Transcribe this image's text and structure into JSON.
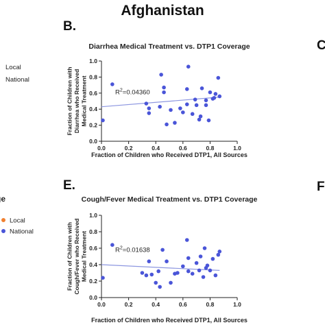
{
  "page": {
    "title": "Afghanistan",
    "left_cut_text": "ge",
    "colors": {
      "local": "#f08030",
      "national": "#4a55d8",
      "trend": "#8c96e0"
    }
  },
  "legends": [
    {
      "items": [
        "Local",
        "National"
      ],
      "show_markers": false
    },
    {
      "items": [
        "Local",
        "National"
      ],
      "show_markers": true
    }
  ],
  "right_letters": [
    "C",
    "F"
  ],
  "chart_data": [
    {
      "type": "scatter",
      "panel": "B.",
      "title": "Diarrhea Medical Treatment vs. DTP1 Coverage",
      "xlabel": "Fraction of Children who Received DTP1, All Sources",
      "ylabel_lines": [
        "Fraction of Children with",
        "Diarrhea who Received",
        "Medical Treatment"
      ],
      "xlim": [
        0,
        1
      ],
      "ylim": [
        0,
        1
      ],
      "xticks": [
        "0.0",
        "0.2",
        "0.4",
        "0.6",
        "0.8",
        "1.0"
      ],
      "yticks": [
        "0.0",
        "0.2",
        "0.4",
        "0.6",
        "0.8",
        "1.0"
      ],
      "annotation": {
        "prefix": "R",
        "sup": "2",
        "value": "=0.04360"
      },
      "trend": {
        "x": [
          0,
          0.87
        ],
        "y": [
          0.43,
          0.55
        ]
      },
      "x": [
        0.01,
        0.08,
        0.33,
        0.35,
        0.35,
        0.43,
        0.44,
        0.46,
        0.46,
        0.48,
        0.51,
        0.54,
        0.58,
        0.6,
        0.63,
        0.63,
        0.64,
        0.67,
        0.69,
        0.7,
        0.72,
        0.73,
        0.74,
        0.77,
        0.77,
        0.79,
        0.8,
        0.82,
        0.83,
        0.84,
        0.86,
        0.87
      ],
      "y": [
        0.26,
        0.71,
        0.47,
        0.41,
        0.35,
        0.43,
        0.83,
        0.67,
        0.61,
        0.21,
        0.39,
        0.23,
        0.41,
        0.36,
        0.65,
        0.46,
        0.93,
        0.34,
        0.52,
        0.45,
        0.27,
        0.31,
        0.66,
        0.51,
        0.45,
        0.26,
        0.61,
        0.53,
        0.54,
        0.59,
        0.79,
        0.56
      ]
    },
    {
      "type": "scatter",
      "panel": "E.",
      "title": "Cough/Fever Medical Treatment vs. DTP1 Coverage",
      "xlabel": "Fraction of Children who Received DTP1, All Sources",
      "ylabel_lines": [
        "Fraction of Children with",
        "Cough/Fever who Received",
        "Medical Treatment"
      ],
      "xlim": [
        0,
        1
      ],
      "ylim": [
        0,
        1
      ],
      "xticks": [
        "0.0",
        "0.2",
        "0.4",
        "0.6",
        "0.8",
        "1.0"
      ],
      "yticks": [
        "0.0",
        "0.2",
        "0.4",
        "0.6",
        "0.8",
        "1.0"
      ],
      "annotation": {
        "prefix": "R",
        "sup": "2",
        "value": "=0.01638"
      },
      "trend": {
        "x": [
          0,
          0.87
        ],
        "y": [
          0.4,
          0.33
        ]
      },
      "x": [
        0.01,
        0.08,
        0.3,
        0.33,
        0.35,
        0.37,
        0.4,
        0.42,
        0.43,
        0.45,
        0.48,
        0.51,
        0.54,
        0.56,
        0.6,
        0.63,
        0.64,
        0.64,
        0.67,
        0.7,
        0.72,
        0.73,
        0.75,
        0.76,
        0.77,
        0.78,
        0.8,
        0.82,
        0.84,
        0.86,
        0.87
      ],
      "y": [
        0.24,
        0.64,
        0.3,
        0.27,
        0.44,
        0.28,
        0.18,
        0.32,
        0.13,
        0.58,
        0.44,
        0.18,
        0.29,
        0.3,
        0.38,
        0.7,
        0.32,
        0.48,
        0.29,
        0.42,
        0.33,
        0.5,
        0.25,
        0.6,
        0.36,
        0.39,
        0.33,
        0.47,
        0.27,
        0.52,
        0.56
      ]
    }
  ]
}
